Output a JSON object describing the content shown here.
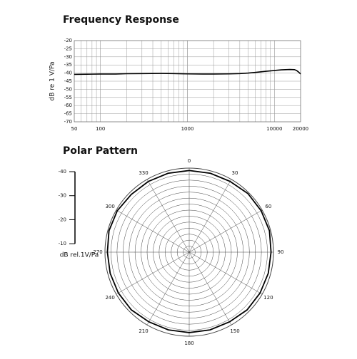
{
  "chart_data": [
    {
      "type": "line",
      "title": "Frequency Response",
      "ylabel": "dB re 1 V/Pa",
      "x": [
        50,
        70,
        100,
        150,
        200,
        300,
        500,
        700,
        1000,
        1500,
        2000,
        3000,
        4000,
        5000,
        6000,
        8000,
        10000,
        12000,
        15000,
        17000,
        18000,
        19000,
        20000
      ],
      "series": [
        {
          "name": "response",
          "color": "#000000",
          "values": [
            -40.8,
            -40.7,
            -40.6,
            -40.6,
            -40.4,
            -40.3,
            -40.2,
            -40.3,
            -40.5,
            -40.6,
            -40.6,
            -40.5,
            -40.3,
            -40.0,
            -39.6,
            -38.9,
            -38.4,
            -38.0,
            -37.8,
            -37.9,
            -38.4,
            -39.4,
            -40.6
          ]
        }
      ],
      "xlog": true,
      "xlim": [
        50,
        20000
      ],
      "xticks": [
        50,
        100,
        1000,
        10000,
        20000
      ],
      "xgrid": [
        60,
        70,
        80,
        90,
        100,
        200,
        300,
        400,
        500,
        600,
        700,
        800,
        900,
        1000,
        2000,
        3000,
        4000,
        5000,
        6000,
        7000,
        8000,
        9000,
        10000
      ],
      "ylim": [
        -70,
        -20
      ],
      "yticks": [
        -20,
        -25,
        -30,
        -35,
        -40,
        -45,
        -50,
        -55,
        -60,
        -65,
        -70
      ],
      "grid": true
    },
    {
      "type": "polar",
      "title": "Polar Pattern",
      "scale_label": "dB rel.1V/Pa",
      "theta": [
        0,
        15,
        30,
        45,
        60,
        75,
        90,
        105,
        120,
        135,
        150,
        165,
        180,
        195,
        210,
        225,
        240,
        255,
        270,
        285,
        300,
        315,
        330,
        345
      ],
      "series": [
        {
          "name": "omni",
          "color": "#000000",
          "values": [
            -1,
            -1,
            -1,
            -0.5,
            -0.5,
            -0.5,
            -1,
            -1,
            -1,
            -1,
            -1.5,
            -1.5,
            -1.5,
            -1.5,
            -1.5,
            -1,
            -1,
            -1,
            -1,
            -0.5,
            -0.5,
            -1,
            -1,
            -1
          ]
        }
      ],
      "thetaticks": [
        0,
        30,
        60,
        90,
        120,
        150,
        180,
        210,
        240,
        270,
        300,
        330
      ],
      "rlim": [
        -35,
        0
      ],
      "rticks": [
        -32.5,
        -30,
        -27.5,
        -25,
        -22.5,
        -20,
        -17.5,
        -15,
        -12.5,
        -10,
        -7.5,
        -5,
        -2.5,
        0
      ],
      "scale_ticks": [
        -40,
        -30,
        -20,
        -10
      ]
    }
  ]
}
